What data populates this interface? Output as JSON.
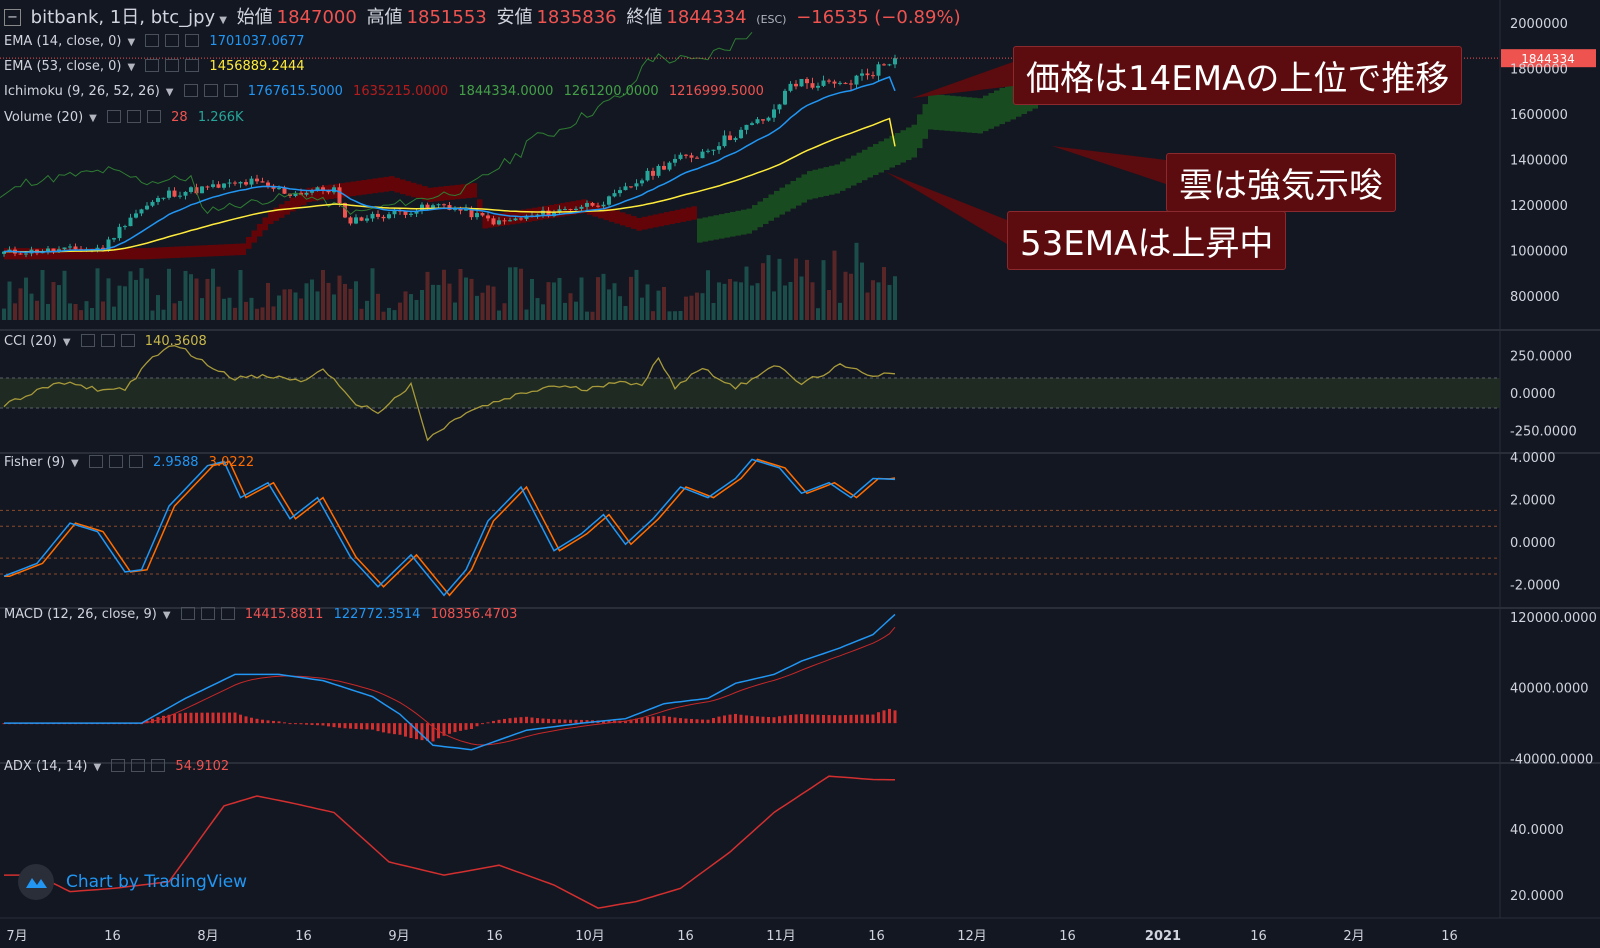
{
  "header": {
    "symbol": "bitbank, 1日, btc_jpy",
    "open_label": "始値",
    "open": "1847000",
    "high_label": "高値",
    "high": "1851553",
    "low_label": "安値",
    "low": "1835836",
    "close_label": "終値",
    "close": "1844334",
    "change": "−16535 (−0.89%)",
    "esc": "(ESC)"
  },
  "indicators": {
    "ema14": {
      "label": "EMA (14, close, 0)",
      "value": "1701037.0677"
    },
    "ema53": {
      "label": "EMA (53, close, 0)",
      "value": "1456889.2444"
    },
    "ichimoku": {
      "label": "Ichimoku (9, 26, 52, 26)",
      "v1": "1767615.5000",
      "v2": "1635215.0000",
      "v3": "1844334.0000",
      "v4": "1261200.0000",
      "v5": "1216999.5000"
    },
    "volume": {
      "label": "Volume (20)",
      "v1": "28",
      "v2": "1.266K"
    },
    "cci": {
      "label": "CCI (20)",
      "value": "140.3608"
    },
    "fisher": {
      "label": "Fisher (9)",
      "v1": "2.9588",
      "v2": "3.0222"
    },
    "macd": {
      "label": "MACD (12, 26, close, 9)",
      "v1": "14415.8811",
      "v2": "122772.3514",
      "v3": "108356.4703"
    },
    "adx": {
      "label": "ADX (14, 14)",
      "value": "54.9102"
    }
  },
  "callouts": {
    "c1": "価格は14EMAの上位で推移",
    "c2": "雲は強気示唆",
    "c3": "53EMAは上昇中"
  },
  "watermark": "Chart by TradingView",
  "colors": {
    "up": "#26a69a",
    "down": "#ef5350",
    "ema14": "#2196f3",
    "ema53": "#ffeb3b",
    "background": "#131722"
  },
  "chart_data": [
    {
      "type": "candlestick",
      "title": "bitbank, 1日, btc_jpy",
      "x_ticks": [
        "7月",
        "16",
        "8月",
        "16",
        "9月",
        "16",
        "10月",
        "16",
        "11月",
        "16",
        "12月",
        "16",
        "2021",
        "16",
        "2月",
        "16"
      ],
      "y_ticks": [
        "2000000",
        "1800000",
        "1600000",
        "1400000",
        "1200000",
        "1000000",
        "800000"
      ],
      "ylim": [
        650000,
        2100000
      ],
      "last_price": "1844334",
      "price_anchors": [
        [
          0,
          990000
        ],
        [
          18,
          1010000
        ],
        [
          23,
          1150000
        ],
        [
          30,
          1250000
        ],
        [
          45,
          1300000
        ],
        [
          52,
          1250000
        ],
        [
          60,
          1270000
        ],
        [
          62,
          1130000
        ],
        [
          70,
          1160000
        ],
        [
          80,
          1200000
        ],
        [
          90,
          1120000
        ],
        [
          100,
          1170000
        ],
        [
          110,
          1220000
        ],
        [
          115,
          1300000
        ],
        [
          121,
          1390000
        ],
        [
          126,
          1420000
        ],
        [
          132,
          1500000
        ],
        [
          140,
          1600000
        ],
        [
          143,
          1740000
        ],
        [
          152,
          1720000
        ],
        [
          158,
          1790000
        ],
        [
          162,
          1844334
        ]
      ],
      "ema14_end": 1701037.0677,
      "ema53_end": 1456889.2444
    },
    {
      "type": "line",
      "title": "CCI (20)",
      "y_ticks": [
        "250.0000",
        "0.0000",
        "-250.0000"
      ],
      "ylim": [
        -400,
        420
      ],
      "band": [
        -100,
        100
      ],
      "anchors": [
        [
          0,
          -80
        ],
        [
          10,
          70
        ],
        [
          18,
          20
        ],
        [
          22,
          30
        ],
        [
          27,
          230
        ],
        [
          31,
          330
        ],
        [
          36,
          210
        ],
        [
          42,
          100
        ],
        [
          48,
          110
        ],
        [
          55,
          80
        ],
        [
          58,
          170
        ],
        [
          63,
          -50
        ],
        [
          68,
          -130
        ],
        [
          74,
          50
        ],
        [
          77,
          -310
        ],
        [
          84,
          -130
        ],
        [
          93,
          -20
        ],
        [
          100,
          50
        ],
        [
          106,
          20
        ],
        [
          112,
          90
        ],
        [
          116,
          40
        ],
        [
          119,
          240
        ],
        [
          122,
          40
        ],
        [
          127,
          170
        ],
        [
          133,
          30
        ],
        [
          140,
          190
        ],
        [
          145,
          60
        ],
        [
          152,
          180
        ],
        [
          158,
          120
        ],
        [
          162,
          140.3608
        ]
      ]
    },
    {
      "type": "line",
      "title": "Fisher (9)",
      "y_ticks": [
        "4.0000",
        "2.0000",
        "0.0000",
        "-2.0000"
      ],
      "ylim": [
        -3.1,
        4.2
      ],
      "anchors": [
        [
          0,
          -1.6
        ],
        [
          6,
          -1.0
        ],
        [
          12,
          0.9
        ],
        [
          17,
          0.5
        ],
        [
          22,
          -1.4
        ],
        [
          25,
          -1.3
        ],
        [
          30,
          1.7
        ],
        [
          37,
          3.6
        ],
        [
          40,
          3.8
        ],
        [
          43,
          2.1
        ],
        [
          48,
          2.8
        ],
        [
          52,
          1.1
        ],
        [
          57,
          2.1
        ],
        [
          63,
          -0.7
        ],
        [
          68,
          -2.1
        ],
        [
          74,
          -0.6
        ],
        [
          80,
          -2.5
        ],
        [
          84,
          -1.3
        ],
        [
          88,
          1.0
        ],
        [
          94,
          2.6
        ],
        [
          100,
          -0.4
        ],
        [
          105,
          0.4
        ],
        [
          109,
          1.3
        ],
        [
          113,
          -0.1
        ],
        [
          118,
          1.1
        ],
        [
          123,
          2.6
        ],
        [
          128,
          2.1
        ],
        [
          133,
          3.0
        ],
        [
          136,
          3.9
        ],
        [
          141,
          3.5
        ],
        [
          145,
          2.3
        ],
        [
          150,
          2.8
        ],
        [
          154,
          2.1
        ],
        [
          158,
          3.0
        ],
        [
          162,
          2.9588
        ]
      ],
      "signal_end": 3.0222
    },
    {
      "type": "line",
      "title": "MACD (12, 26, close, 9)",
      "y_ticks": [
        "120000.0000",
        "40000.0000",
        "-40000.0000"
      ],
      "ylim": [
        -45000,
        130000
      ],
      "macd_anchors": [
        [
          0,
          0
        ],
        [
          25,
          0
        ],
        [
          33,
          28000
        ],
        [
          42,
          55000
        ],
        [
          50,
          55000
        ],
        [
          58,
          48000
        ],
        [
          67,
          30000
        ],
        [
          72,
          10000
        ],
        [
          78,
          -25000
        ],
        [
          85,
          -30000
        ],
        [
          95,
          -8000
        ],
        [
          105,
          0
        ],
        [
          113,
          5000
        ],
        [
          120,
          22000
        ],
        [
          128,
          28000
        ],
        [
          133,
          45000
        ],
        [
          140,
          55000
        ],
        [
          145,
          70000
        ],
        [
          152,
          85000
        ],
        [
          158,
          100000
        ],
        [
          162,
          122772.3514
        ]
      ],
      "histogram_end": 14415.8811,
      "signal_end": 108356.4703
    },
    {
      "type": "line",
      "title": "ADX (14, 14)",
      "y_ticks": [
        "40.0000",
        "20.0000"
      ],
      "ylim": [
        13,
        60
      ],
      "anchors": [
        [
          0,
          26
        ],
        [
          6,
          26
        ],
        [
          12,
          21
        ],
        [
          20,
          22
        ],
        [
          30,
          24
        ],
        [
          40,
          47
        ],
        [
          46,
          50
        ],
        [
          52,
          48
        ],
        [
          60,
          45
        ],
        [
          70,
          30
        ],
        [
          80,
          26
        ],
        [
          90,
          29
        ],
        [
          100,
          23
        ],
        [
          108,
          16
        ],
        [
          115,
          18
        ],
        [
          123,
          22
        ],
        [
          132,
          33
        ],
        [
          140,
          45
        ],
        [
          150,
          56
        ],
        [
          158,
          55
        ],
        [
          162,
          54.9102
        ]
      ]
    }
  ]
}
